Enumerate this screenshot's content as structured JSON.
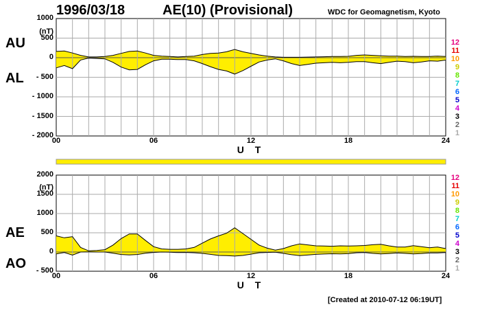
{
  "header": {
    "date": "1996/03/18",
    "title": "AE(10) (Provisional)",
    "org": "WDC for Geomagnetism, Kyoto"
  },
  "footer": "[Created at 2010-07-12 06:19UT]",
  "legend": {
    "numbers": [
      "12",
      "11",
      "10",
      "9",
      "8",
      "7",
      "6",
      "5",
      "4",
      "3",
      "2",
      "1"
    ],
    "colors": [
      "#e6007e",
      "#e60000",
      "#ff9900",
      "#cccc00",
      "#66e600",
      "#00cccc",
      "#0066ff",
      "#0000cc",
      "#cc00cc",
      "#000000",
      "#666666",
      "#aaaaaa"
    ]
  },
  "fill_color": "#ffee00",
  "chart_data": [
    {
      "type": "area",
      "panel": "AU/AL",
      "labels": {
        "upper": "AU",
        "lower": "AL"
      },
      "unit": "(nT)",
      "xlabel": "U T",
      "xlim": [
        0,
        24
      ],
      "xticks": [
        0,
        6,
        12,
        18,
        24
      ],
      "xtick_labels": [
        "00",
        "06",
        "12",
        "18",
        "24"
      ],
      "ylim": [
        -2000,
        1000
      ],
      "yticks": [
        1000,
        500,
        0,
        -500,
        -1000,
        -1500,
        -2000
      ],
      "ytick_labels": [
        "1000",
        "500",
        "0",
        "- 500",
        "- 1000",
        "- 1500",
        "- 2000"
      ],
      "grid": true,
      "x": [
        0,
        0.5,
        1,
        1.5,
        2,
        2.5,
        3,
        3.5,
        4,
        4.5,
        5,
        5.5,
        6,
        6.5,
        7,
        7.5,
        8,
        8.5,
        9,
        9.5,
        10,
        10.5,
        11,
        11.5,
        12,
        12.5,
        13,
        13.5,
        14,
        14.5,
        15,
        15.5,
        16,
        16.5,
        17,
        17.5,
        18,
        18.5,
        19,
        19.5,
        20,
        20.5,
        21,
        21.5,
        22,
        22.5,
        23,
        23.5,
        24
      ],
      "series": [
        {
          "name": "AU",
          "values": [
            160,
            170,
            120,
            60,
            20,
            20,
            30,
            60,
            110,
            160,
            170,
            120,
            60,
            40,
            30,
            20,
            30,
            40,
            80,
            110,
            120,
            150,
            210,
            150,
            110,
            70,
            40,
            20,
            10,
            10,
            10,
            15,
            20,
            25,
            30,
            30,
            35,
            60,
            70,
            60,
            50,
            40,
            40,
            30,
            35,
            30,
            30,
            40,
            30
          ]
        },
        {
          "name": "AL",
          "values": [
            -260,
            -200,
            -280,
            -60,
            -10,
            -20,
            -30,
            -120,
            -240,
            -310,
            -300,
            -180,
            -80,
            -40,
            -40,
            -50,
            -50,
            -80,
            -150,
            -230,
            -300,
            -340,
            -420,
            -330,
            -220,
            -110,
            -60,
            -30,
            -80,
            -150,
            -200,
            -170,
            -140,
            -130,
            -120,
            -130,
            -120,
            -100,
            -100,
            -130,
            -150,
            -120,
            -90,
            -100,
            -130,
            -110,
            -80,
            -90,
            -60
          ]
        }
      ]
    },
    {
      "type": "area",
      "panel": "AE/AO",
      "labels": {
        "upper": "AE",
        "lower": "AO"
      },
      "unit": "(nT)",
      "xlabel": "U T",
      "xlim": [
        0,
        24
      ],
      "xticks": [
        0,
        6,
        12,
        18,
        24
      ],
      "xtick_labels": [
        "00",
        "06",
        "12",
        "18",
        "24"
      ],
      "ylim": [
        -500,
        2000
      ],
      "yticks": [
        2000,
        1500,
        1000,
        500,
        0,
        -500
      ],
      "ytick_labels": [
        "2000",
        "1500",
        "1000",
        "500",
        "0",
        "- 500"
      ],
      "grid": true,
      "x": [
        0,
        0.5,
        1,
        1.5,
        2,
        2.5,
        3,
        3.5,
        4,
        4.5,
        5,
        5.5,
        6,
        6.5,
        7,
        7.5,
        8,
        8.5,
        9,
        9.5,
        10,
        10.5,
        11,
        11.5,
        12,
        12.5,
        13,
        13.5,
        14,
        14.5,
        15,
        15.5,
        16,
        16.5,
        17,
        17.5,
        18,
        18.5,
        19,
        19.5,
        20,
        20.5,
        21,
        21.5,
        22,
        22.5,
        23,
        23.5,
        24
      ],
      "series": [
        {
          "name": "AE",
          "values": [
            420,
            370,
            400,
            120,
            30,
            40,
            60,
            180,
            350,
            470,
            470,
            300,
            140,
            80,
            70,
            70,
            80,
            120,
            230,
            340,
            420,
            490,
            630,
            480,
            330,
            180,
            100,
            50,
            90,
            160,
            210,
            185,
            160,
            155,
            150,
            160,
            155,
            160,
            170,
            190,
            200,
            160,
            130,
            130,
            165,
            140,
            110,
            130,
            90
          ]
        },
        {
          "name": "AO",
          "values": [
            -50,
            -15,
            -80,
            0,
            5,
            0,
            0,
            -30,
            -65,
            -75,
            -65,
            -30,
            -10,
            0,
            -5,
            -15,
            -10,
            -20,
            -35,
            -60,
            -90,
            -95,
            -105,
            -90,
            -55,
            -20,
            -10,
            -5,
            -35,
            -70,
            -95,
            -78,
            -60,
            -52,
            -45,
            -50,
            -43,
            -20,
            -15,
            -35,
            -50,
            -40,
            -25,
            -35,
            -48,
            -40,
            -25,
            -25,
            -15
          ]
        }
      ]
    }
  ]
}
